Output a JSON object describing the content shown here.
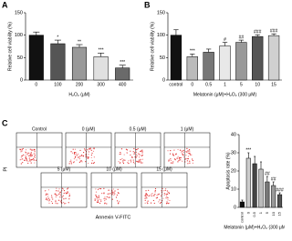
{
  "panel_labels": [
    "A",
    "B",
    "C"
  ],
  "flow": {
    "titles": [
      "Control",
      "0 (μM)",
      "0.5 (μM)",
      "1 (μM)",
      "5 (μM)",
      "10 (μM)",
      "15 (μM)"
    ],
    "y_label": "PI",
    "x_label": "Annexin V-FITC"
  },
  "chart_data": [
    {
      "type": "bar",
      "y_label": "Relative cell viability (%)",
      "x_label": "H₂O₂ (μM)",
      "categories": [
        "0",
        "100",
        "200",
        "300",
        "400"
      ],
      "values": [
        100,
        81,
        73,
        52,
        27
      ],
      "errors": [
        7,
        8,
        6,
        8,
        6
      ],
      "annotations": [
        null,
        "*",
        "**",
        "***",
        "***"
      ],
      "colors": [
        "#111111",
        "#555555",
        "#999999",
        "#e0e0e0",
        "#6a6a6a"
      ],
      "ylim": [
        0,
        150
      ],
      "yticks": [
        0,
        50,
        100,
        150
      ]
    },
    {
      "type": "bar",
      "y_label": "Relative cell viability (%)",
      "x_label": "Melatonin (μM)+H₂O₂ (300 μM)",
      "categories": [
        "control",
        "0",
        "0.5",
        "1",
        "5",
        "10",
        "15"
      ],
      "values": [
        100,
        52,
        62,
        76,
        84,
        97,
        99
      ],
      "errors": [
        12,
        6,
        7,
        8,
        5,
        4,
        4
      ],
      "annotations": [
        null,
        "***",
        null,
        "#",
        "##",
        "###",
        "###"
      ],
      "colors": [
        "#111111",
        "#bbbbbb",
        "#777777",
        "#e8e8e8",
        "#999999",
        "#555555",
        "#d0d0d0"
      ],
      "ylim": [
        0,
        150
      ],
      "yticks": [
        0,
        50,
        100,
        150
      ]
    },
    {
      "type": "bar",
      "y_label": "Apoptosis rate (%)",
      "x_label": "Melatonin (μM)+H₂O₂ (300 μM)",
      "categories": [
        "control",
        "0",
        "0.5",
        "1",
        "5",
        "10",
        "15"
      ],
      "values": [
        3,
        27,
        24,
        21,
        14,
        12,
        7
      ],
      "errors": [
        1,
        3,
        4,
        4,
        3,
        2,
        1
      ],
      "annotations": [
        null,
        "***",
        null,
        null,
        "##",
        "##",
        "###"
      ],
      "colors": [
        "#111111",
        "#cccccc",
        "#444444",
        "#bbbbbb",
        "#777777",
        "#999999",
        "#555555"
      ],
      "ylim": [
        0,
        40
      ],
      "yticks": [
        0,
        10,
        20,
        30,
        40
      ]
    }
  ]
}
